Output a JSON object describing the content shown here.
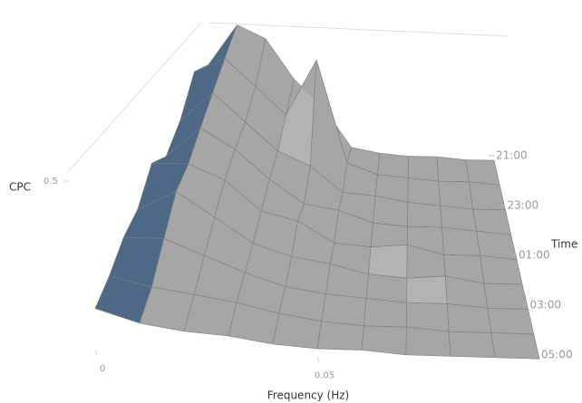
{
  "chart_data": {
    "type": "surface",
    "x_label": "Frequency (Hz)",
    "y_label": "Time",
    "z_label": "CPC",
    "x": [
      0,
      0.01,
      0.02,
      0.03,
      0.04,
      0.05,
      0.06,
      0.07,
      0.08,
      0.09,
      0.1
    ],
    "y": [
      "21:00",
      null,
      "23:00",
      null,
      "01:00",
      null,
      "03:00",
      null,
      "05:00"
    ],
    "z": [
      [
        0.35,
        0.5,
        0.45,
        0.3,
        0.2,
        0.05,
        0.03,
        0.02,
        0.02,
        0.01,
        0.01
      ],
      [
        0.4,
        0.45,
        0.35,
        0.25,
        0.45,
        0.08,
        0.04,
        0.03,
        0.02,
        0.02,
        0.01
      ],
      [
        0.3,
        0.4,
        0.3,
        0.2,
        0.15,
        0.06,
        0.05,
        0.03,
        0.02,
        0.01,
        0.01
      ],
      [
        0.25,
        0.35,
        0.28,
        0.18,
        0.1,
        0.08,
        0.04,
        0.03,
        0.03,
        0.02,
        0.01
      ],
      [
        0.3,
        0.3,
        0.25,
        0.15,
        0.12,
        0.05,
        0.04,
        0.05,
        0.02,
        0.02,
        0.01
      ],
      [
        0.22,
        0.28,
        0.2,
        0.12,
        0.08,
        0.06,
        0.03,
        0.02,
        0.03,
        0.01,
        0.01
      ],
      [
        0.2,
        0.2,
        0.15,
        0.1,
        0.06,
        0.04,
        0.03,
        0.02,
        0.02,
        0.01,
        0.01
      ],
      [
        0.15,
        0.12,
        0.1,
        0.08,
        0.05,
        0.03,
        0.02,
        0.02,
        0.01,
        0.01,
        0.01
      ],
      [
        0.12,
        0.08,
        0.06,
        0.05,
        0.03,
        0.02,
        0.02,
        0.01,
        0.01,
        0.01,
        0.01
      ]
    ],
    "xlim": [
      0,
      0.1
    ],
    "xticks": [
      0,
      0.05
    ],
    "zlim": [
      0,
      0.5
    ],
    "zticks": [
      0.5
    ],
    "colors": [
      "#4d6985",
      "#a6a6a6"
    ]
  }
}
